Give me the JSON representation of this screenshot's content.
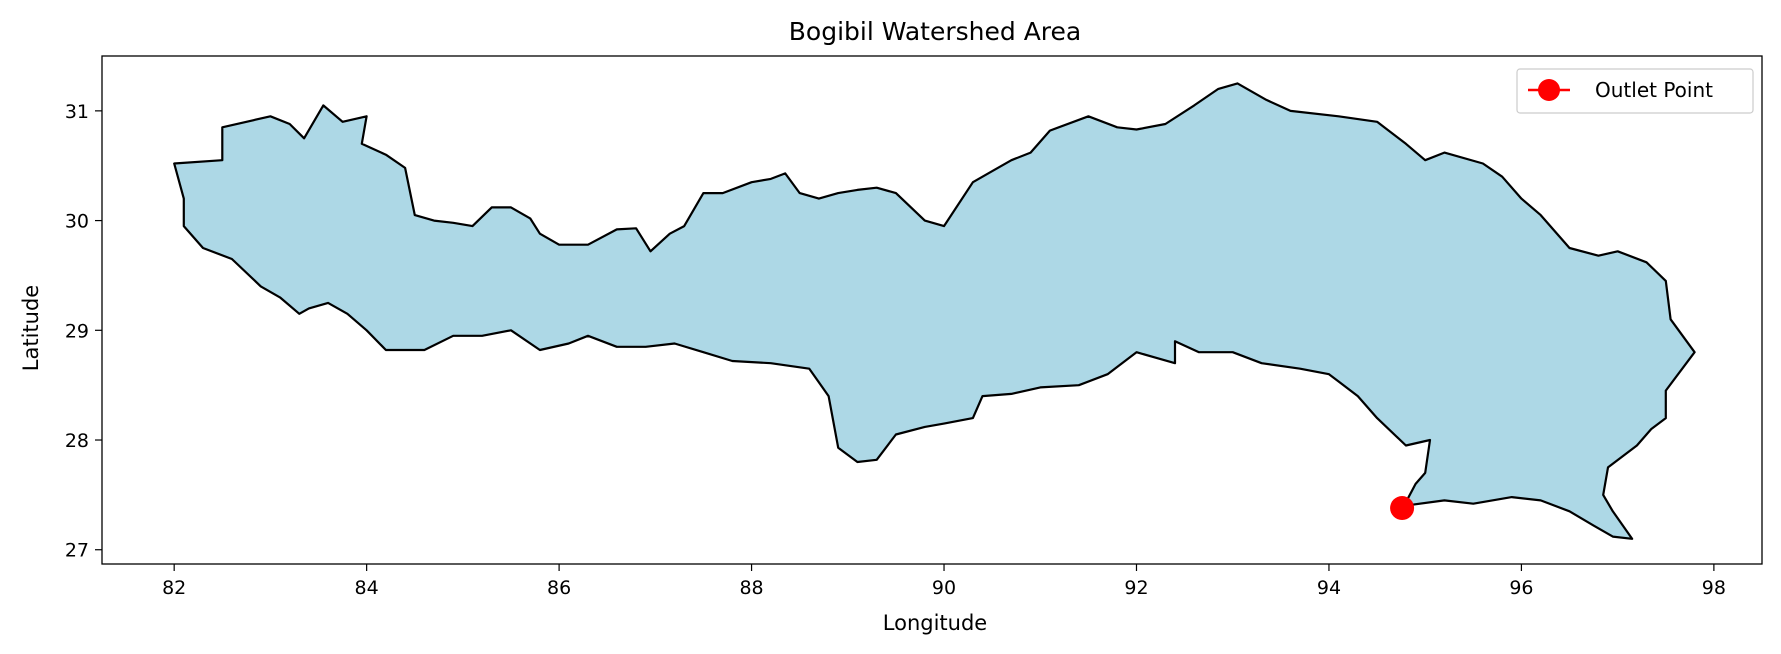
{
  "chart_data": {
    "type": "map",
    "title": "Bogibil Watershed Area",
    "xlabel": "Longitude",
    "ylabel": "Latitude",
    "xlim": [
      81.25,
      98.5
    ],
    "ylim": [
      26.87,
      31.5
    ],
    "xticks": [
      82,
      84,
      86,
      88,
      90,
      92,
      94,
      96,
      98
    ],
    "yticks": [
      27,
      28,
      29,
      30,
      31
    ],
    "grid": false,
    "legend": {
      "position": "top-right",
      "entries": [
        {
          "label": "Outlet Point",
          "color": "#ff0000"
        }
      ]
    },
    "watershed": {
      "fill": "#add8e6",
      "edge": "#000000",
      "outline": [
        [
          82.0,
          30.52
        ],
        [
          82.5,
          30.55
        ],
        [
          82.5,
          30.85
        ],
        [
          83.0,
          30.95
        ],
        [
          83.2,
          30.88
        ],
        [
          83.35,
          30.75
        ],
        [
          83.55,
          31.05
        ],
        [
          83.75,
          30.9
        ],
        [
          84.0,
          30.95
        ],
        [
          83.95,
          30.7
        ],
        [
          84.2,
          30.6
        ],
        [
          84.4,
          30.48
        ],
        [
          84.5,
          30.05
        ],
        [
          84.7,
          30.0
        ],
        [
          84.9,
          29.98
        ],
        [
          85.1,
          29.95
        ],
        [
          85.3,
          30.12
        ],
        [
          85.5,
          30.12
        ],
        [
          85.7,
          30.02
        ],
        [
          85.8,
          29.88
        ],
        [
          86.0,
          29.78
        ],
        [
          86.3,
          29.78
        ],
        [
          86.6,
          29.92
        ],
        [
          86.8,
          29.93
        ],
        [
          86.95,
          29.72
        ],
        [
          87.15,
          29.88
        ],
        [
          87.3,
          29.95
        ],
        [
          87.5,
          30.25
        ],
        [
          87.7,
          30.25
        ],
        [
          88.0,
          30.35
        ],
        [
          88.2,
          30.38
        ],
        [
          88.35,
          30.43
        ],
        [
          88.5,
          30.25
        ],
        [
          88.7,
          30.2
        ],
        [
          88.9,
          30.25
        ],
        [
          89.1,
          30.28
        ],
        [
          89.3,
          30.3
        ],
        [
          89.5,
          30.25
        ],
        [
          89.8,
          30.0
        ],
        [
          90.0,
          29.95
        ],
        [
          90.3,
          30.35
        ],
        [
          90.5,
          30.45
        ],
        [
          90.7,
          30.55
        ],
        [
          90.9,
          30.62
        ],
        [
          91.1,
          30.82
        ],
        [
          91.5,
          30.95
        ],
        [
          91.8,
          30.85
        ],
        [
          92.0,
          30.83
        ],
        [
          92.3,
          30.88
        ],
        [
          92.6,
          31.05
        ],
        [
          92.85,
          31.2
        ],
        [
          93.05,
          31.25
        ],
        [
          93.35,
          31.1
        ],
        [
          93.6,
          31.0
        ],
        [
          94.1,
          30.95
        ],
        [
          94.5,
          30.9
        ],
        [
          94.8,
          30.7
        ],
        [
          95.0,
          30.55
        ],
        [
          95.2,
          30.62
        ],
        [
          95.6,
          30.52
        ],
        [
          95.8,
          30.4
        ],
        [
          96.0,
          30.2
        ],
        [
          96.2,
          30.05
        ],
        [
          96.5,
          29.75
        ],
        [
          96.8,
          29.68
        ],
        [
          97.0,
          29.72
        ],
        [
          97.3,
          29.62
        ],
        [
          97.5,
          29.45
        ],
        [
          97.55,
          29.1
        ],
        [
          97.8,
          28.8
        ],
        [
          97.5,
          28.45
        ],
        [
          97.5,
          28.2
        ],
        [
          97.35,
          28.1
        ],
        [
          97.2,
          27.95
        ],
        [
          96.9,
          27.75
        ],
        [
          96.85,
          27.5
        ],
        [
          96.95,
          27.35
        ],
        [
          97.15,
          27.1
        ],
        [
          96.95,
          27.12
        ],
        [
          96.75,
          27.22
        ],
        [
          96.5,
          27.35
        ],
        [
          96.2,
          27.45
        ],
        [
          95.9,
          27.48
        ],
        [
          95.5,
          27.42
        ],
        [
          95.2,
          27.45
        ],
        [
          94.78,
          27.4
        ],
        [
          94.9,
          27.6
        ],
        [
          95.0,
          27.7
        ],
        [
          95.05,
          28.0
        ],
        [
          94.8,
          27.95
        ],
        [
          94.5,
          28.2
        ],
        [
          94.3,
          28.4
        ],
        [
          94.0,
          28.6
        ],
        [
          93.7,
          28.65
        ],
        [
          93.3,
          28.7
        ],
        [
          93.0,
          28.8
        ],
        [
          92.65,
          28.8
        ],
        [
          92.4,
          28.9
        ],
        [
          92.4,
          28.7
        ],
        [
          92.2,
          28.75
        ],
        [
          92.0,
          28.8
        ],
        [
          91.7,
          28.6
        ],
        [
          91.4,
          28.5
        ],
        [
          91.0,
          28.48
        ],
        [
          90.7,
          28.42
        ],
        [
          90.4,
          28.4
        ],
        [
          90.3,
          28.2
        ],
        [
          90.0,
          28.15
        ],
        [
          89.8,
          28.12
        ],
        [
          89.5,
          28.05
        ],
        [
          89.3,
          27.82
        ],
        [
          89.1,
          27.8
        ],
        [
          88.9,
          27.93
        ],
        [
          88.8,
          28.4
        ],
        [
          88.6,
          28.65
        ],
        [
          88.2,
          28.7
        ],
        [
          87.8,
          28.72
        ],
        [
          87.5,
          28.8
        ],
        [
          87.2,
          28.88
        ],
        [
          86.9,
          28.85
        ],
        [
          86.6,
          28.85
        ],
        [
          86.3,
          28.95
        ],
        [
          86.1,
          28.88
        ],
        [
          85.8,
          28.82
        ],
        [
          85.5,
          29.0
        ],
        [
          85.2,
          28.95
        ],
        [
          84.9,
          28.95
        ],
        [
          84.6,
          28.82
        ],
        [
          84.2,
          28.82
        ],
        [
          84.0,
          29.0
        ],
        [
          83.8,
          29.15
        ],
        [
          83.6,
          29.25
        ],
        [
          83.4,
          29.2
        ],
        [
          83.3,
          29.15
        ],
        [
          83.1,
          29.3
        ],
        [
          82.9,
          29.4
        ],
        [
          82.6,
          29.65
        ],
        [
          82.3,
          29.75
        ],
        [
          82.1,
          29.95
        ],
        [
          82.1,
          30.2
        ],
        [
          82.0,
          30.52
        ]
      ]
    },
    "outlet_point": {
      "name": "Outlet Point",
      "x": 94.76,
      "y": 27.38,
      "color": "#ff0000"
    }
  }
}
